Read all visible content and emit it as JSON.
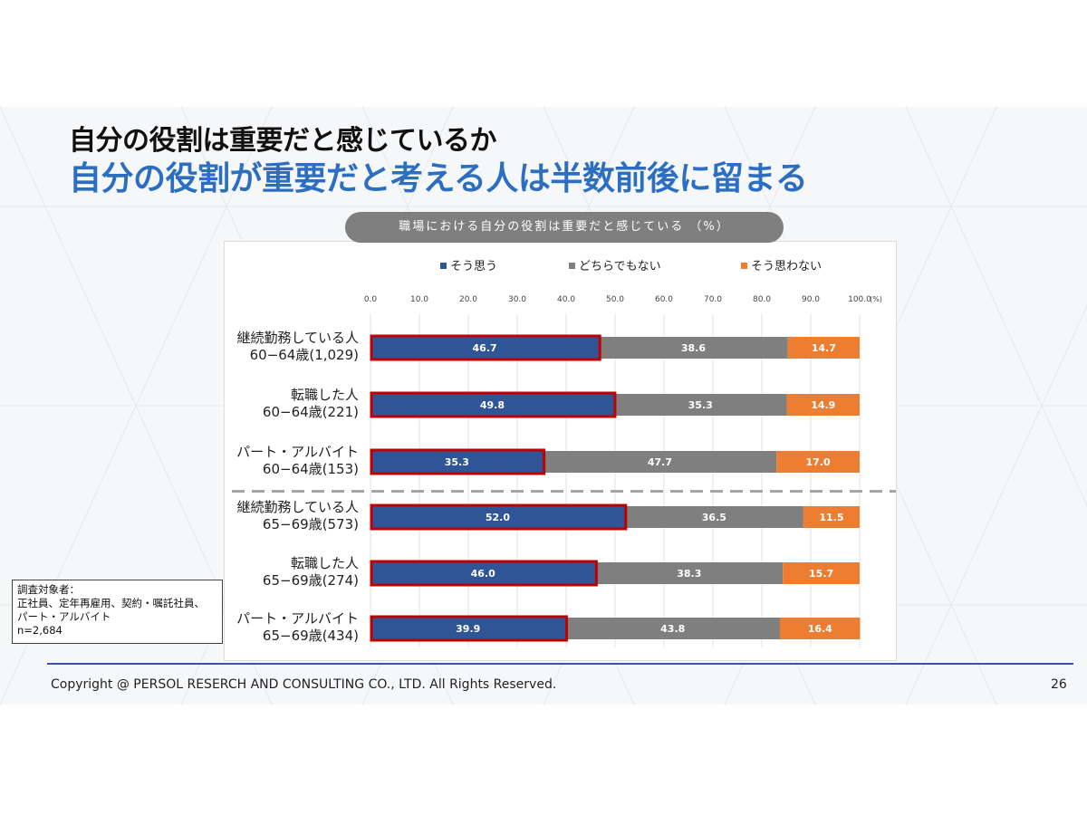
{
  "slide": {
    "title_line1": "自分の役割は重要だと感じているか",
    "title_line2": "自分の役割が重要だと考える人は半数前後に留まる",
    "chart_pill": "職場における自分の役割は重要だと感じている （%）",
    "note": {
      "lines": [
        "調査対象者：",
        "正社員、定年再雇用、契約・嘱託社員、",
        "パート・アルバイト",
        "n=2,684"
      ]
    },
    "copyright": "Copyright @ PERSOL RESERCH AND CONSULTING CO., LTD. All Rights Reserved.",
    "page_number": "26"
  },
  "colors": {
    "series": [
      "#2f5597",
      "#7f7f7f",
      "#ed7d31"
    ],
    "highlight_border": "#c00000",
    "title_accent": "#2c6fc2",
    "footer_line": "#3f51a8"
  },
  "chart_data": {
    "type": "bar",
    "orientation": "horizontal",
    "stacked": true,
    "x_ticks": [
      "0.0",
      "10.0",
      "20.0",
      "30.0",
      "40.0",
      "50.0",
      "60.0",
      "70.0",
      "80.0",
      "90.0",
      "100.0"
    ],
    "x_unit": "(%)",
    "xlim": [
      0,
      100
    ],
    "grid": true,
    "legend_position": "top",
    "categories": [
      [
        "継続勤務している人",
        "60−64歳(1,029)"
      ],
      [
        "転職した人",
        "60−64歳(221)"
      ],
      [
        "パート・アルバイト",
        "60−64歳(153)"
      ],
      [
        "継続勤務している人",
        "65−69歳(573)"
      ],
      [
        "転職した人",
        "65−69歳(274)"
      ],
      [
        "パート・アルバイト",
        "65−69歳(434)"
      ]
    ],
    "series": [
      {
        "name": "そう思う",
        "values": [
          46.7,
          49.8,
          35.3,
          52.0,
          46.0,
          39.9
        ]
      },
      {
        "name": "どちらでもない",
        "values": [
          38.6,
          35.3,
          47.7,
          36.5,
          38.3,
          43.8
        ]
      },
      {
        "name": "そう思わない",
        "values": [
          14.7,
          14.9,
          17.0,
          11.5,
          15.7,
          16.4
        ]
      }
    ],
    "value_labels": [
      [
        "46.7",
        "49.8",
        "35.3",
        "52.0",
        "46.0",
        "39.9"
      ],
      [
        "38.6",
        "35.3",
        "47.7",
        "36.5",
        "38.3",
        "43.8"
      ],
      [
        "14.7",
        "14.9",
        "17.0",
        "11.5",
        "15.7",
        "16.4"
      ]
    ],
    "highlighted_series": 0,
    "group_separator_after": 2
  }
}
